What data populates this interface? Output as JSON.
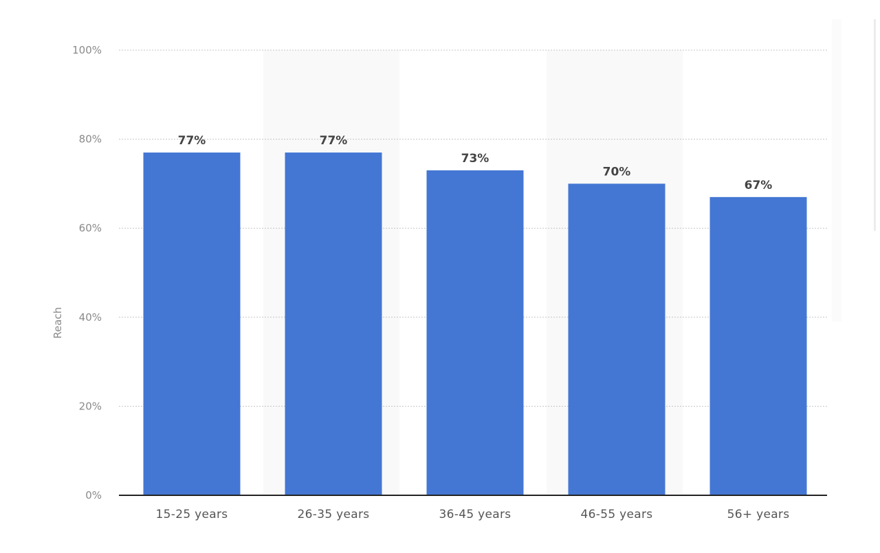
{
  "chart_data": {
    "type": "bar",
    "title": "",
    "xlabel": "",
    "ylabel": "Reach",
    "categories": [
      "15-25 years",
      "26-35 years",
      "36-45 years",
      "46-55 years",
      "56+ years"
    ],
    "values": [
      77,
      77,
      73,
      70,
      67
    ],
    "value_labels": [
      "77%",
      "77%",
      "73%",
      "70%",
      "67%"
    ],
    "ylim": [
      0,
      100
    ],
    "yticks": [
      0,
      20,
      40,
      60,
      80,
      100
    ],
    "ytick_labels": [
      "0%",
      "20%",
      "40%",
      "60%",
      "80%",
      "100%"
    ],
    "grid": true,
    "legend": "none",
    "colors": {
      "bar": "#4477d4",
      "band": "#f9f9f9",
      "grid": "#c4c4c4",
      "axis": "#222222"
    }
  }
}
